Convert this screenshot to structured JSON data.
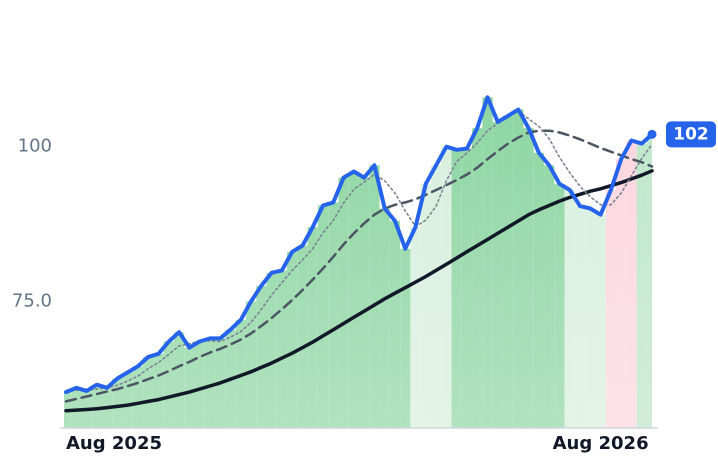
{
  "chart_data": {
    "type": "line",
    "categories": [
      "Aug 2025",
      null,
      null,
      null,
      null,
      null,
      null,
      null,
      null,
      null,
      null,
      null,
      null,
      null,
      null,
      null,
      null,
      null,
      null,
      null,
      null,
      null,
      null,
      null,
      null,
      null,
      null,
      null,
      null,
      null,
      null,
      null,
      null,
      null,
      null,
      null,
      null,
      null,
      null,
      null,
      null,
      null,
      null,
      null,
      null,
      null,
      null,
      null,
      null,
      null,
      null,
      null,
      "Aug 2026",
      null,
      null,
      null,
      null,
      null
    ],
    "series": [
      {
        "color": "#2563eb",
        "width": 4,
        "dash": "none",
        "values": [
          60.3,
          61,
          60.5,
          61.5,
          61,
          62.5,
          63.5,
          64.5,
          66,
          66.5,
          68.5,
          70,
          67.5,
          68.5,
          69,
          69,
          70.4,
          72,
          75,
          77.5,
          79.6,
          80,
          83,
          84,
          87,
          90.5,
          91,
          95,
          96,
          95,
          97,
          90,
          88,
          83.5,
          87,
          94,
          97,
          100,
          99.5,
          99.7,
          103,
          108,
          104,
          105,
          106,
          103,
          99,
          97,
          94,
          93,
          90.4,
          90,
          89,
          93,
          98,
          101,
          100.5,
          102
        ]
      },
      {
        "color": "#7c8494",
        "width": 1.6,
        "dash": "2 3",
        "values": [
          60.3,
          60.6,
          60.6,
          60.8,
          61,
          61.4,
          62.1,
          62.9,
          64.1,
          65.1,
          66.4,
          67.8,
          68.1,
          68.6,
          68.6,
          68.5,
          69.2,
          70.1,
          71.6,
          73.7,
          76,
          78,
          80,
          81.7,
          83.5,
          86.1,
          88.1,
          90.9,
          93.1,
          94.3,
          95.5,
          94.5,
          92.5,
          89.6,
          87.1,
          88.1,
          90.4,
          94.5,
          97.6,
          99,
          100.6,
          102.6,
          103.8,
          105,
          105.8,
          104.5,
          103.3,
          101.3,
          98.3,
          95.8,
          93.6,
          91.9,
          90.6,
          90.6,
          92.5,
          95.3,
          98.1,
          100.4
        ]
      },
      {
        "color": "#4b5563",
        "width": 2.5,
        "dash": "10 6",
        "values": [
          58.8,
          59.2,
          59.6,
          60,
          60.4,
          60.8,
          61.3,
          61.8,
          62.4,
          63,
          63.7,
          64.5,
          65.2,
          66,
          66.7,
          67.3,
          68,
          68.8,
          69.8,
          71,
          72.3,
          73.7,
          75.2,
          76.8,
          78.5,
          80.3,
          82.2,
          84.2,
          86,
          87.6,
          89,
          90,
          90.6,
          91,
          91.5,
          92.2,
          93,
          93.8,
          94.6,
          95.5,
          96.6,
          98,
          99.3,
          100.5,
          101.5,
          102.3,
          102.6,
          102.6,
          102.3,
          101.8,
          101.2,
          100.5,
          99.8,
          99.2,
          98.6,
          98,
          97.5,
          96.8
        ]
      },
      {
        "color": "#111827",
        "width": 3.5,
        "dash": "none",
        "values": [
          57.3,
          57.4,
          57.5,
          57.6,
          57.8,
          58,
          58.2,
          58.5,
          58.8,
          59.1,
          59.5,
          59.9,
          60.3,
          60.8,
          61.3,
          61.8,
          62.4,
          63,
          63.6,
          64.3,
          65,
          65.8,
          66.6,
          67.5,
          68.4,
          69.4,
          70.4,
          71.4,
          72.4,
          73.4,
          74.4,
          75.4,
          76.3,
          77.2,
          78.1,
          79,
          80,
          81,
          82,
          83,
          84,
          85,
          86,
          87,
          88,
          89,
          89.8,
          90.5,
          91.2,
          91.8,
          92.3,
          92.8,
          93.2,
          93.7,
          94.2,
          94.8,
          95.4,
          96.1
        ]
      }
    ],
    "fill_colors": [
      "#86d39c",
      "#86d39c",
      "#86d39c",
      "#86d39c",
      "#86d39c",
      "#86d39c",
      "#86d39c",
      "#86d39c",
      "#86d39c",
      "#86d39c",
      "#86d39c",
      "#86d39c",
      "#86d39c",
      "#86d39c",
      "#86d39c",
      "#86d39c",
      "#86d39c",
      "#86d39c",
      "#86d39c",
      "#86d39c",
      "#86d39c",
      "#86d39c",
      "#86d39c",
      "#86d39c",
      "#86d39c",
      "#86d39c",
      "#86d39c",
      "#86d39c",
      "#86d39c",
      "#86d39c",
      "#86d39c",
      "#86d39c",
      "#86d39c",
      "#86d39c",
      "#d4eedb",
      "#d4eedb",
      "#d4eedb",
      "#d4eedb",
      "#86d39c",
      "#86d39c",
      "#86d39c",
      "#86d39c",
      "#86d39c",
      "#86d39c",
      "#86d39c",
      "#86d39c",
      "#86d39c",
      "#86d39c",
      "#86d39c",
      "#d4eedb",
      "#d4eedb",
      "#d4eedb",
      "#d4eedb",
      "#fbd3dc",
      "#fbd3dc",
      "#fbd3dc",
      "#b9e4c6",
      "#b9e4c6"
    ],
    "ylim": [
      54.5,
      120.5
    ],
    "yticks": [
      {
        "value": 75,
        "label": "75.0"
      },
      100
    ]
  }
}
